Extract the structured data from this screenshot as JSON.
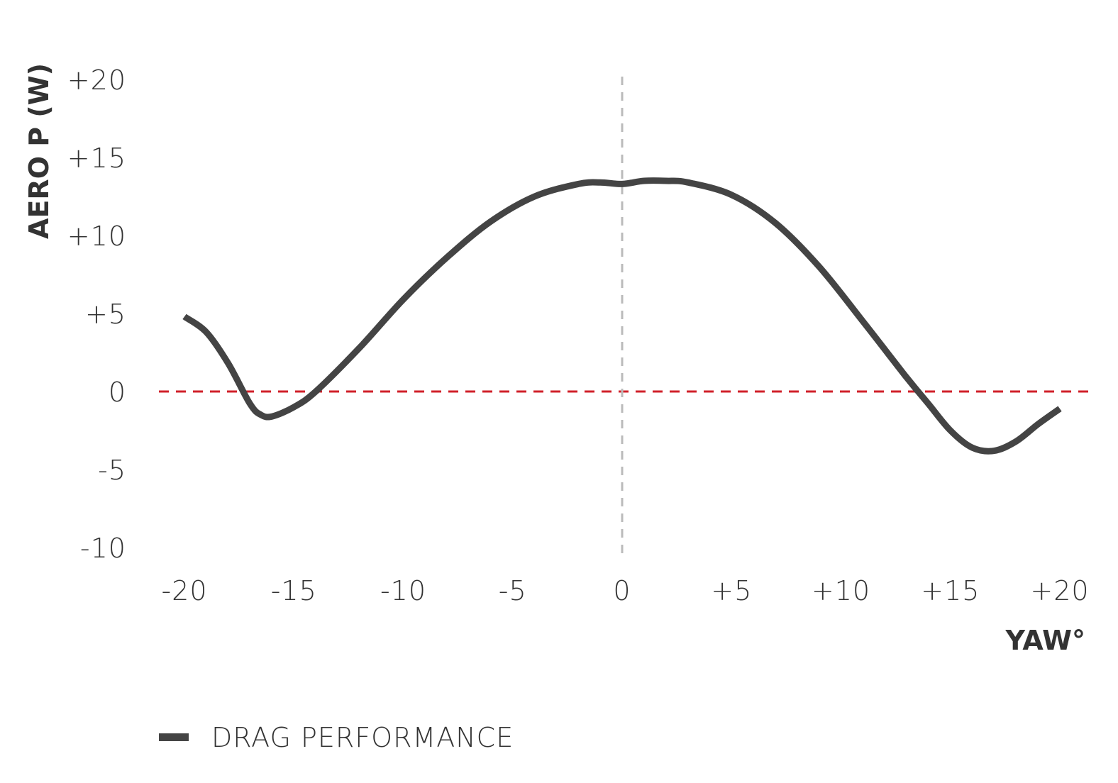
{
  "chart_data": {
    "type": "line",
    "xlabel": "YAW°",
    "ylabel": "AERO P (W)",
    "xlim": [
      -20,
      20
    ],
    "ylim": [
      -10,
      20
    ],
    "x_ticks": [
      {
        "value": -20,
        "label": "-20"
      },
      {
        "value": -15,
        "label": "-15"
      },
      {
        "value": -10,
        "label": "-10"
      },
      {
        "value": -5,
        "label": "-5"
      },
      {
        "value": 0,
        "label": "0"
      },
      {
        "value": 5,
        "label": "+5"
      },
      {
        "value": 10,
        "label": "+10"
      },
      {
        "value": 15,
        "label": "+15"
      },
      {
        "value": 20,
        "label": "+20"
      }
    ],
    "y_ticks": [
      {
        "value": 20,
        "label": "+20"
      },
      {
        "value": 15,
        "label": "+15"
      },
      {
        "value": 10,
        "label": "+10"
      },
      {
        "value": 5,
        "label": "+5"
      },
      {
        "value": 0,
        "label": "0"
      },
      {
        "value": -5,
        "label": "-5"
      },
      {
        "value": -10,
        "label": "-10"
      }
    ],
    "reference_lines": [
      {
        "axis": "y",
        "value": 0,
        "color": "#d0202a",
        "style": "dashed"
      },
      {
        "axis": "x",
        "value": 0,
        "color": "#bbbbbb",
        "style": "dashed"
      }
    ],
    "grid": false,
    "legend_position": "bottom-left",
    "series": [
      {
        "name": "DRAG PERFORMANCE",
        "color": "#444444",
        "x": [
          -20,
          -19,
          -18,
          -17,
          -16.5,
          -16,
          -15,
          -14,
          -12,
          -10,
          -8,
          -6,
          -4,
          -2,
          -1,
          0,
          1,
          2,
          3,
          5,
          7,
          9,
          11,
          13,
          14,
          15,
          16,
          17,
          18,
          19,
          20
        ],
        "y": [
          4.8,
          3.8,
          1.8,
          -0.8,
          -1.5,
          -1.6,
          -1.0,
          0.0,
          2.8,
          5.9,
          8.6,
          10.9,
          12.5,
          13.3,
          13.4,
          13.3,
          13.5,
          13.5,
          13.4,
          12.6,
          10.8,
          8.0,
          4.5,
          0.9,
          -0.8,
          -2.5,
          -3.6,
          -3.8,
          -3.2,
          -2.1,
          -1.1
        ]
      }
    ]
  }
}
